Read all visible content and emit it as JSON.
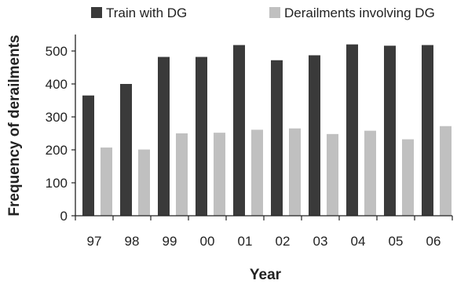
{
  "chart_data": {
    "type": "bar",
    "title": "",
    "xlabel": "Year",
    "ylabel": "Frequency of derailments",
    "categories": [
      "97",
      "98",
      "99",
      "00",
      "01",
      "02",
      "03",
      "04",
      "05",
      "06"
    ],
    "series": [
      {
        "name": "Train with DG",
        "color": "#3a3a3a",
        "values": [
          365,
          400,
          482,
          482,
          518,
          472,
          487,
          520,
          516,
          518
        ]
      },
      {
        "name": "Derailments involving DG",
        "color": "#c0c0c0",
        "values": [
          207,
          201,
          250,
          252,
          261,
          265,
          248,
          258,
          232,
          272
        ]
      }
    ],
    "ylim": [
      0,
      550
    ],
    "yticks": [
      0,
      100,
      200,
      300,
      400,
      500
    ],
    "grid": false,
    "legend_position": "top"
  }
}
